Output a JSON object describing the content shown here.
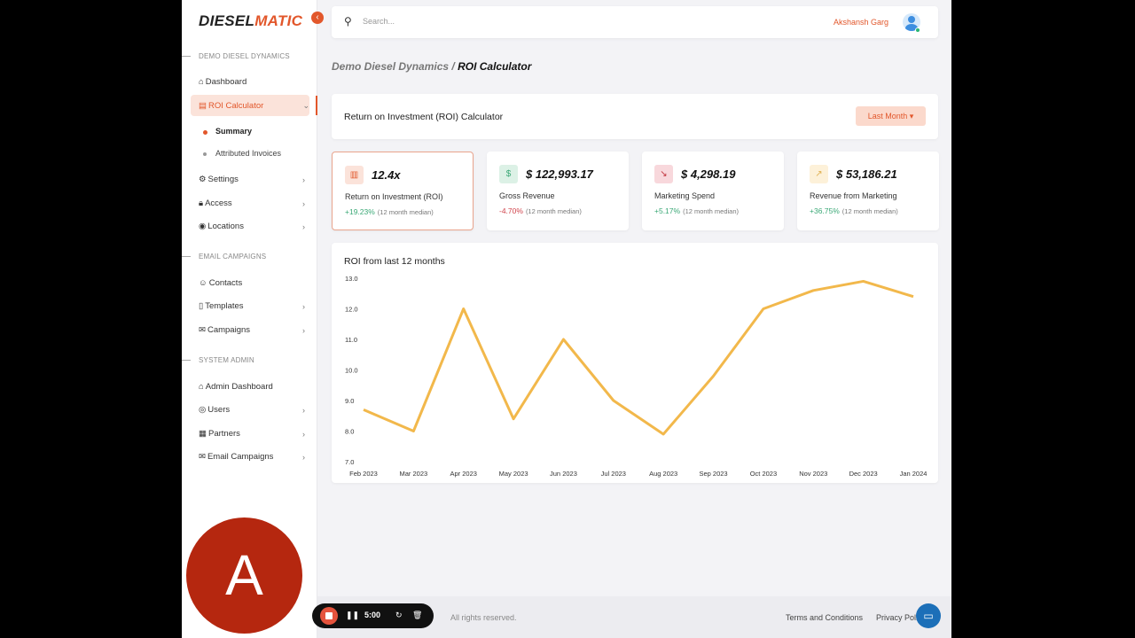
{
  "brand": {
    "logo_part1": "DIESEL",
    "logo_part2": "MATIC",
    "accent": "#e2572b"
  },
  "sidebar": {
    "sections": [
      "DEMO DIESEL DYNAMICS",
      "EMAIL CAMPAIGNS",
      "SYSTEM ADMIN"
    ],
    "items": [
      {
        "label": "Dashboard",
        "icon": "home-icon"
      },
      {
        "label": "ROI Calculator",
        "icon": "calculator-icon"
      },
      {
        "label": "Settings",
        "icon": "gear-icon"
      },
      {
        "label": "Access",
        "icon": "lock-icon"
      },
      {
        "label": "Locations",
        "icon": "pin-icon"
      },
      {
        "label": "Contacts",
        "icon": "user-icon"
      },
      {
        "label": "Templates",
        "icon": "document-icon"
      },
      {
        "label": "Campaigns",
        "icon": "mail-icon"
      },
      {
        "label": "Admin Dashboard",
        "icon": "home-icon"
      },
      {
        "label": "Users",
        "icon": "user-circle-icon"
      },
      {
        "label": "Partners",
        "icon": "building-icon"
      },
      {
        "label": "Email Campaigns",
        "icon": "mail-icon"
      }
    ],
    "subitems": [
      "Summary",
      "Attributed Invoices"
    ]
  },
  "topbar": {
    "search_placeholder": "Search...",
    "user_name": "Akshansh Garg"
  },
  "breadcrumb": {
    "parent": "Demo Diesel Dynamics /",
    "current": "ROI Calculator"
  },
  "header": {
    "title": "Return on Investment (ROI) Calculator",
    "period_button": "Last Month ▾"
  },
  "stats": [
    {
      "value": "12.4x",
      "label": "Return on Investment (ROI)",
      "change": "+19.23%",
      "note": "(12 month median)",
      "icon": "bar-chart-icon"
    },
    {
      "value": "$ 122,993.17",
      "label": "Gross Revenue",
      "change": "-4.70%",
      "note": "(12 month median)",
      "icon": "dollar-icon"
    },
    {
      "value": "$ 4,298.19",
      "label": "Marketing Spend",
      "change": "+5.17%",
      "note": "(12 month median)",
      "icon": "trend-down-icon"
    },
    {
      "value": "$ 53,186.21",
      "label": "Revenue from Marketing",
      "change": "+36.75%",
      "note": "(12 month median)",
      "icon": "trend-up-icon"
    }
  ],
  "chart_data": {
    "type": "line",
    "title": "ROI from last 12 months",
    "categories": [
      "Feb 2023",
      "Mar 2023",
      "Apr 2023",
      "May 2023",
      "Jun 2023",
      "Jul 2023",
      "Aug 2023",
      "Sep 2023",
      "Oct 2023",
      "Nov 2023",
      "Dec 2023",
      "Jan 2024"
    ],
    "values": [
      8.7,
      8.0,
      12.0,
      8.4,
      11.0,
      9.0,
      7.9,
      9.8,
      12.0,
      12.6,
      12.9,
      12.4
    ],
    "yticks": [
      "13.0",
      "12.0",
      "11.0",
      "10.0",
      "9.0",
      "8.0",
      "7.0"
    ],
    "ylim": [
      7,
      13
    ],
    "grid": false,
    "color": "#f2b84b"
  },
  "footer": {
    "copyright": "All rights reserved.",
    "links": [
      "Terms and Conditions",
      "Privacy Policy"
    ]
  },
  "recorder": {
    "time": "5:00"
  },
  "overlay_avatar": "A"
}
